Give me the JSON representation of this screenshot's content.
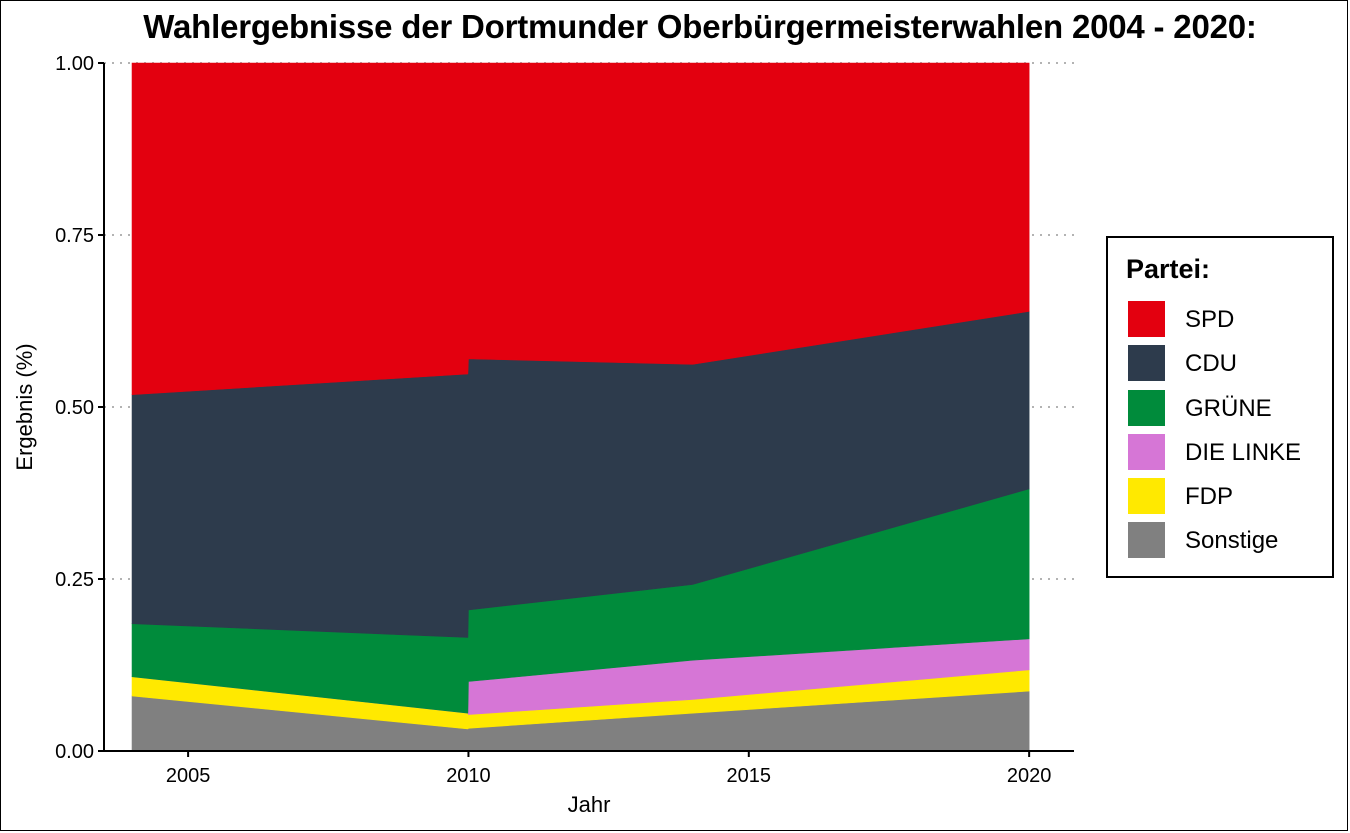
{
  "chart_data": {
    "type": "area",
    "stacked": true,
    "normalized": true,
    "title": "Wahlergebnisse der Dortmunder Oberbürgermeisterwahlen 2004 - 2020:",
    "xlabel": "Jahr",
    "ylabel": "Ergebnis (%)",
    "x_ticks": [
      "2005",
      "2010",
      "2015",
      "2020"
    ],
    "y_ticks": [
      "0.00",
      "0.25",
      "0.50",
      "0.75",
      "1.00"
    ],
    "xlim": [
      2003.5,
      2020.8
    ],
    "ylim": [
      0,
      1
    ],
    "grid": "horizontal dotted",
    "legend_title": "Partei:",
    "legend_position": "right",
    "x": [
      2004,
      2009.99,
      2010,
      2014,
      2020
    ],
    "series": [
      {
        "name": "Sonstige",
        "color": "#808080",
        "values": [
          0.08,
          0.032,
          0.033,
          0.055,
          0.087
        ]
      },
      {
        "name": "FDP",
        "color": "#FFE900",
        "values": [
          0.028,
          0.023,
          0.02,
          0.02,
          0.031
        ]
      },
      {
        "name": "DIE LINKE",
        "color": "#D676D6",
        "values": [
          0.0,
          0.0,
          0.048,
          0.057,
          0.045
        ]
      },
      {
        "name": "GRÜNE",
        "color": "#008B3B",
        "values": [
          0.077,
          0.11,
          0.104,
          0.11,
          0.218
        ]
      },
      {
        "name": "CDU",
        "color": "#2D3B4C",
        "values": [
          0.333,
          0.383,
          0.365,
          0.32,
          0.258
        ]
      },
      {
        "name": "SPD",
        "color": "#E3000F",
        "values": [
          0.482,
          0.452,
          0.43,
          0.438,
          0.361
        ]
      }
    ]
  },
  "legend": {
    "title": "Partei:",
    "items": [
      {
        "label": "SPD",
        "color": "#E3000F"
      },
      {
        "label": "CDU",
        "color": "#2D3B4C"
      },
      {
        "label": "GRÜNE",
        "color": "#008B3B"
      },
      {
        "label": "DIE LINKE",
        "color": "#D676D6"
      },
      {
        "label": "FDP",
        "color": "#FFE900"
      },
      {
        "label": "Sonstige",
        "color": "#808080"
      }
    ]
  }
}
